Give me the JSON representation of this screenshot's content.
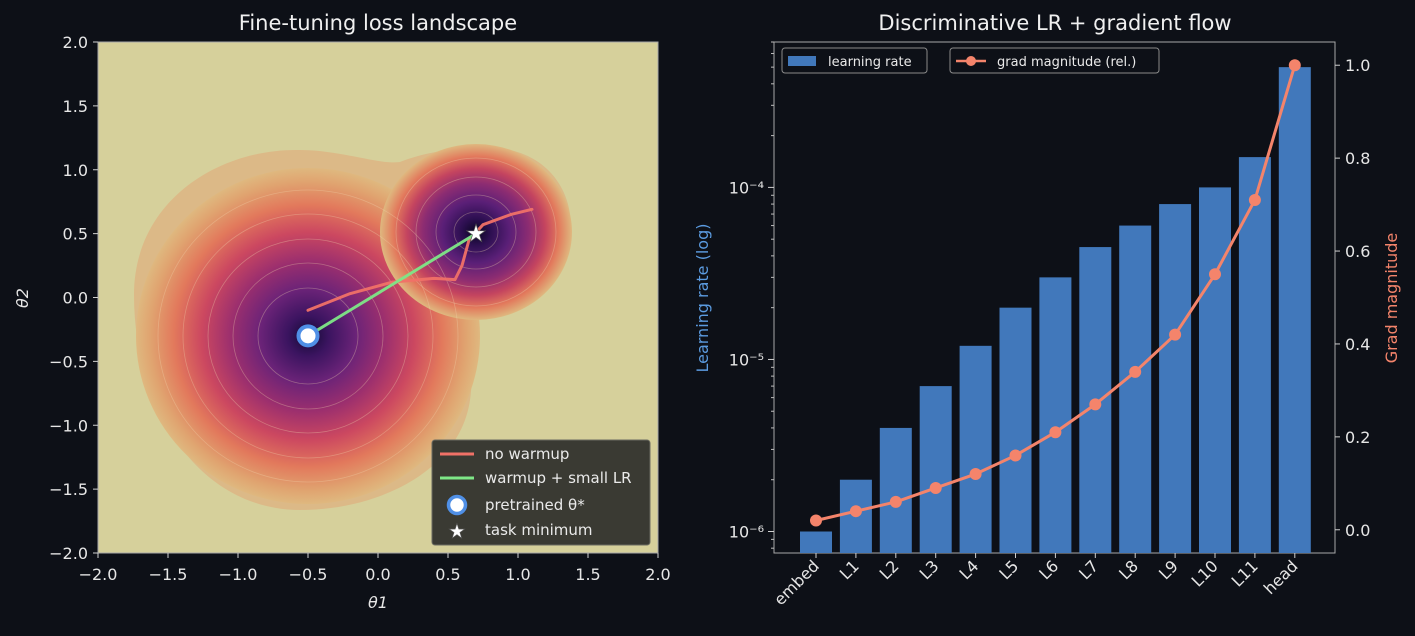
{
  "chart_data": [
    {
      "type": "contour",
      "title": "Fine-tuning loss landscape",
      "xlabel": "θ1",
      "ylabel": "θ2",
      "xlim": [
        -2.0,
        2.0
      ],
      "ylim": [
        -2.0,
        2.0
      ],
      "xticks": [
        "−2.0",
        "−1.5",
        "−1.0",
        "−0.5",
        "0.0",
        "0.5",
        "1.0",
        "1.5",
        "2.0"
      ],
      "yticks": [
        "2.0",
        "1.5",
        "1.0",
        "0.5",
        "0.0",
        "−0.5",
        "−1.0",
        "−1.5",
        "−2.0"
      ],
      "basins": [
        {
          "x": -0.5,
          "y": -0.3,
          "label": "pretrained θ*"
        },
        {
          "x": 0.7,
          "y": 0.5,
          "label": "task minimum"
        }
      ],
      "series": [
        {
          "name": "no warmup",
          "color": "#f07167",
          "x": [
            -0.5,
            -0.2,
            0.1,
            0.4,
            0.55,
            0.6,
            0.65,
            0.75,
            0.95,
            1.1
          ],
          "y": [
            -0.1,
            0.03,
            0.12,
            0.15,
            0.14,
            0.25,
            0.45,
            0.57,
            0.65,
            0.69
          ]
        },
        {
          "name": "warmup + small LR",
          "color": "#7ee787",
          "x": [
            -0.5,
            -0.2,
            0.1,
            0.4,
            0.7
          ],
          "y": [
            -0.3,
            -0.1,
            0.1,
            0.3,
            0.5
          ]
        }
      ],
      "legend": [
        "no warmup",
        "warmup + small LR",
        "pretrained θ*",
        "task minimum"
      ],
      "legend_position": "lower right",
      "colors": {
        "background": "#d6d09b",
        "pretrained": "#4f8fe6",
        "minimum": "#ffffff"
      }
    },
    {
      "type": "bar+line",
      "title": "Discriminative LR + gradient flow",
      "ylabel": "Learning rate (log)",
      "ylabel_right": "Grad magnitude",
      "categories": [
        "embed",
        "L1",
        "L2",
        "L3",
        "L4",
        "L5",
        "L6",
        "L7",
        "L8",
        "L9",
        "L10",
        "L11",
        "head"
      ],
      "yscale": "log",
      "ylim": [
        7.5e-07,
        0.0007
      ],
      "yticks_log": [
        "10⁻⁶",
        "10⁻⁵",
        "10⁻⁴"
      ],
      "ylim_right": [
        -0.05,
        1.05
      ],
      "yticks_right": [
        "0.0",
        "0.2",
        "0.4",
        "0.6",
        "0.8",
        "1.0"
      ],
      "series": [
        {
          "name": "learning rate",
          "kind": "bar",
          "color": "#4178bb",
          "values": [
            1e-06,
            2e-06,
            4e-06,
            7e-06,
            1.2e-05,
            2e-05,
            3e-05,
            4.5e-05,
            6e-05,
            8e-05,
            0.0001,
            0.00015,
            0.0005
          ]
        },
        {
          "name": "grad magnitude (rel.)",
          "kind": "line",
          "color": "#f4846b",
          "values": [
            0.02,
            0.04,
            0.06,
            0.09,
            0.12,
            0.16,
            0.21,
            0.27,
            0.34,
            0.42,
            0.55,
            0.71,
            1.0
          ]
        }
      ],
      "legend_position": "top-left",
      "colors": {
        "axis_left_label": "#5b9be0",
        "axis_right_label": "#f4846b"
      }
    }
  ]
}
